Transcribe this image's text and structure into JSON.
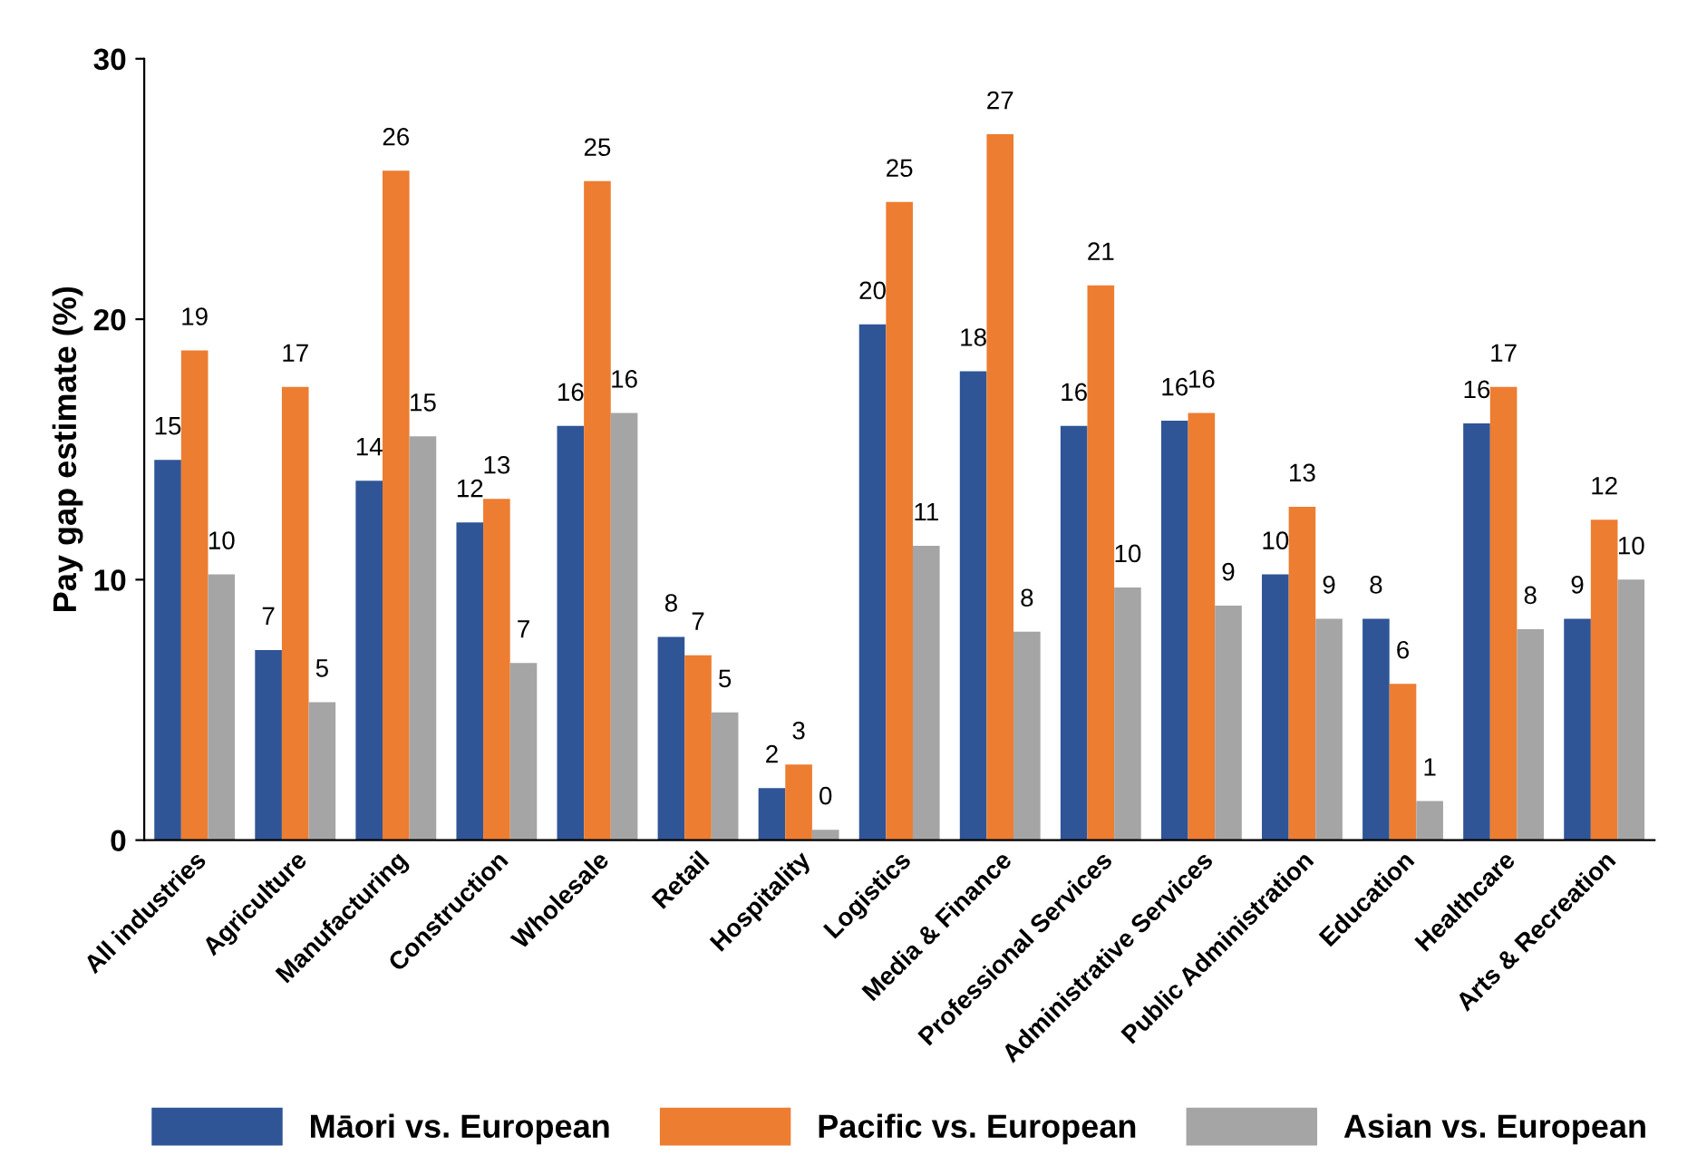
{
  "chart_data": {
    "type": "bar",
    "ylabel": "Pay gap estimate (%)",
    "categories": [
      "All industries",
      "Agriculture",
      "Manufacturing",
      "Construction",
      "Wholesale",
      "Retail",
      "Hospitality",
      "Logistics",
      "Media & Finance",
      "Professional Services",
      "Administrative Services",
      "Public Administration",
      "Education",
      "Healthcare",
      "Arts & Recreation"
    ],
    "series": [
      {
        "name": "Māori vs. European",
        "color": "#2f5597",
        "values": [
          14.6,
          7.3,
          13.8,
          12.2,
          15.9,
          7.8,
          2.0,
          19.8,
          18.0,
          15.9,
          16.1,
          10.2,
          8.5,
          16.0,
          8.5
        ],
        "value_labels": [
          "15",
          "7",
          "14",
          "12",
          "16",
          "8",
          "2",
          "20",
          "18",
          "16",
          "16",
          "10",
          "8",
          "16",
          "9"
        ]
      },
      {
        "name": "Pacific vs. European",
        "color": "#ed7d31",
        "values": [
          18.8,
          17.4,
          25.7,
          13.1,
          25.3,
          7.1,
          2.9,
          24.5,
          27.1,
          21.3,
          16.4,
          12.8,
          6.0,
          17.4,
          12.3
        ],
        "value_labels": [
          "19",
          "17",
          "26",
          "13",
          "25",
          "7",
          "3",
          "25",
          "27",
          "21",
          "16",
          "13",
          "6",
          "17",
          "12"
        ]
      },
      {
        "name": "Asian vs. European",
        "color": "#a5a5a5",
        "values": [
          10.2,
          5.3,
          15.5,
          6.8,
          16.4,
          4.9,
          0.4,
          11.3,
          8.0,
          9.7,
          9.0,
          8.5,
          1.5,
          8.1,
          10.0
        ],
        "value_labels": [
          "10",
          "5",
          "15",
          "7",
          "16",
          "5",
          "0",
          "11",
          "8",
          "10",
          "9",
          "9",
          "1",
          "8",
          "10"
        ]
      }
    ],
    "ylim": [
      0,
      30
    ],
    "yticks": [
      0,
      10,
      20,
      30
    ],
    "grid": false,
    "legend": "bottom"
  }
}
